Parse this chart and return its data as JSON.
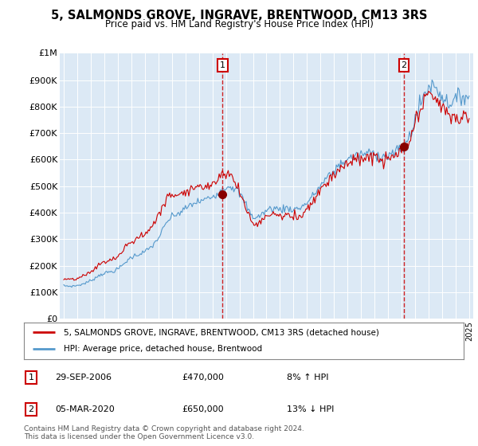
{
  "title": "5, SALMONDS GROVE, INGRAVE, BRENTWOOD, CM13 3RS",
  "subtitle": "Price paid vs. HM Land Registry's House Price Index (HPI)",
  "background_color": "#dce9f5",
  "line_color_property": "#cc0000",
  "line_color_hpi": "#5599cc",
  "vline_color": "#cc0000",
  "ylim": [
    0,
    1000000
  ],
  "xlim_left": 1994.7,
  "xlim_right": 2025.3,
  "yticks": [
    0,
    100000,
    200000,
    300000,
    400000,
    500000,
    600000,
    700000,
    800000,
    900000
  ],
  "ytick_labels": [
    "£0",
    "£100K",
    "£200K",
    "£300K",
    "£400K",
    "£500K",
    "£600K",
    "£700K",
    "£800K",
    "£900K"
  ],
  "y1m_label": "£1M",
  "transaction1_x": 2006.75,
  "transaction1_y": 470000,
  "transaction2_x": 2020.17,
  "transaction2_y": 650000,
  "legend_label_property": "5, SALMONDS GROVE, INGRAVE, BRENTWOOD, CM13 3RS (detached house)",
  "legend_label_hpi": "HPI: Average price, detached house, Brentwood",
  "footer": "Contains HM Land Registry data © Crown copyright and database right 2024.\nThis data is licensed under the Open Government Licence v3.0."
}
